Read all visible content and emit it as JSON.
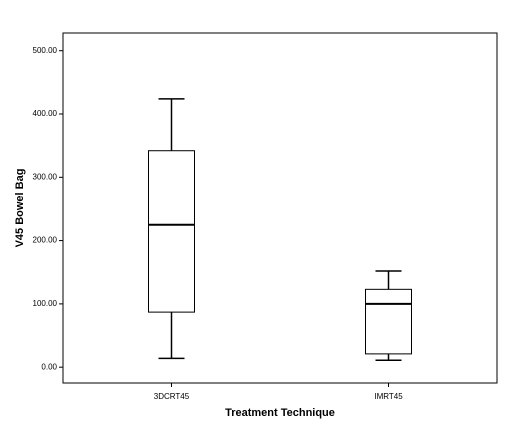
{
  "chart_data": {
    "type": "box",
    "x_label": "Treatment Technique",
    "y_label": "V45 Bowel Bag",
    "categories": [
      "3DCRT45",
      "IMRT45"
    ],
    "min": [
      14,
      11
    ],
    "q1": [
      87,
      21
    ],
    "median": [
      225,
      100
    ],
    "q3": [
      342,
      123
    ],
    "max": [
      424,
      152
    ],
    "color": "#ffffff",
    "ylim": [
      -25,
      528
    ],
    "yticks": [
      {
        "value": 0,
        "label": "0.00"
      },
      {
        "value": 100,
        "label": "100.00"
      },
      {
        "value": 200,
        "label": "200.00"
      },
      {
        "value": 300,
        "label": "300.00"
      },
      {
        "value": 400,
        "label": "400.00"
      },
      {
        "value": 500,
        "label": "500.00"
      }
    ]
  }
}
